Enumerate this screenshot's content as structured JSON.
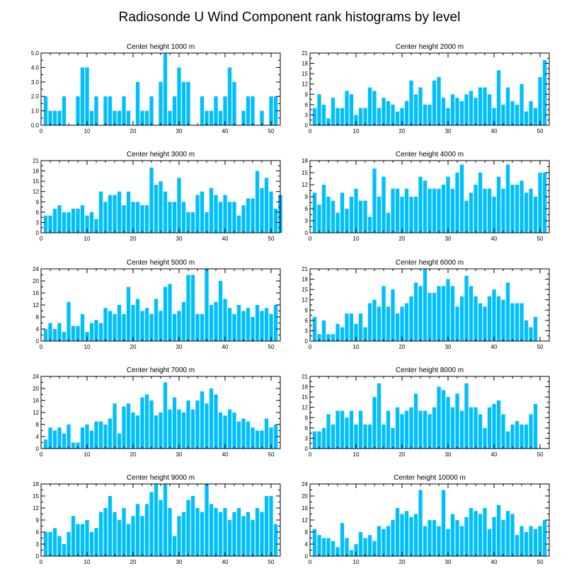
{
  "title": "Radiosonde U Wind Component rank histograms by level",
  "colors": {
    "bar": "#00bfff",
    "axis": "#000000",
    "background": "#ffffff"
  },
  "chart_data": [
    {
      "type": "bar",
      "title": "Center height 1000 m",
      "xlim": [
        0,
        52
      ],
      "ylim": [
        0,
        5
      ],
      "xticks": [
        0,
        10,
        20,
        30,
        40,
        50
      ],
      "yticks": [
        0,
        1,
        2,
        3,
        4,
        5
      ],
      "ytick_labels": [
        "0.0",
        "1.0",
        "2.0",
        "3.0",
        "4.0",
        "5.0"
      ],
      "x": [
        1,
        2,
        3,
        4,
        5,
        6,
        7,
        8,
        9,
        10,
        11,
        12,
        13,
        14,
        15,
        16,
        17,
        18,
        19,
        20,
        21,
        22,
        23,
        24,
        25,
        26,
        27,
        28,
        29,
        30,
        31,
        32,
        33,
        34,
        35,
        36,
        37,
        38,
        39,
        40,
        41,
        42,
        43,
        44,
        45,
        46,
        47,
        48,
        49,
        50,
        51,
        52
      ],
      "values": [
        2,
        1,
        1,
        1,
        2,
        0,
        0,
        2,
        4,
        4,
        1,
        2,
        0,
        2,
        2,
        1,
        1,
        2,
        1,
        0,
        3,
        1,
        1,
        2,
        0,
        3,
        5,
        1,
        2,
        4,
        3,
        3,
        0,
        0,
        2,
        1,
        1,
        2,
        1,
        2,
        4,
        3,
        0,
        1,
        2,
        2,
        0,
        1,
        0,
        2,
        2,
        0
      ]
    },
    {
      "type": "bar",
      "title": "Center height 2000 m",
      "xlim": [
        0,
        52
      ],
      "ylim": [
        0,
        21
      ],
      "xticks": [
        0,
        10,
        20,
        30,
        40,
        50
      ],
      "yticks": [
        0,
        3,
        6,
        9,
        12,
        15,
        18,
        21
      ],
      "ytick_labels": [
        "0",
        "3",
        "6",
        "9",
        "12",
        "15",
        "18",
        "21"
      ],
      "x": [
        1,
        2,
        3,
        4,
        5,
        6,
        7,
        8,
        9,
        10,
        11,
        12,
        13,
        14,
        15,
        16,
        17,
        18,
        19,
        20,
        21,
        22,
        23,
        24,
        25,
        26,
        27,
        28,
        29,
        30,
        31,
        32,
        33,
        34,
        35,
        36,
        37,
        38,
        39,
        40,
        41,
        42,
        43,
        44,
        45,
        46,
        47,
        48,
        49,
        50,
        51,
        52
      ],
      "values": [
        5,
        9,
        6,
        2,
        8,
        5,
        5,
        10,
        9,
        3,
        5,
        5,
        11,
        10,
        5,
        8,
        7,
        6,
        4,
        5,
        7,
        13,
        9,
        11,
        6,
        6,
        13,
        14,
        8,
        5,
        9,
        8,
        7,
        9,
        10,
        8,
        11,
        11,
        9,
        5,
        16,
        6,
        11,
        7,
        6,
        12,
        4,
        7,
        5,
        14,
        19,
        0
      ]
    },
    {
      "type": "bar",
      "title": "Center height 3000 m",
      "xlim": [
        0,
        52
      ],
      "ylim": [
        0,
        21
      ],
      "xticks": [
        0,
        10,
        20,
        30,
        40,
        50
      ],
      "yticks": [
        0,
        3,
        6,
        9,
        12,
        15,
        18,
        21
      ],
      "ytick_labels": [
        "0",
        "3",
        "6",
        "9",
        "12",
        "15",
        "18",
        "21"
      ],
      "x": [
        1,
        2,
        3,
        4,
        5,
        6,
        7,
        8,
        9,
        10,
        11,
        12,
        13,
        14,
        15,
        16,
        17,
        18,
        19,
        20,
        21,
        22,
        23,
        24,
        25,
        26,
        27,
        28,
        29,
        30,
        31,
        32,
        33,
        34,
        35,
        36,
        37,
        38,
        39,
        40,
        41,
        42,
        43,
        44,
        45,
        46,
        47,
        48,
        49,
        50,
        51,
        52
      ],
      "values": [
        5,
        5,
        7,
        8,
        6,
        6,
        7,
        7,
        8,
        5,
        6,
        4,
        12,
        9,
        11,
        11,
        12,
        8,
        12,
        9,
        9,
        8,
        8,
        19,
        14,
        15,
        12,
        9,
        9,
        16,
        9,
        6,
        6,
        11,
        12,
        6,
        13,
        11,
        9,
        11,
        9,
        9,
        5,
        8,
        10,
        10,
        18,
        13,
        16,
        12,
        7,
        11
      ]
    },
    {
      "type": "bar",
      "title": "Center height 4000 m",
      "xlim": [
        0,
        52
      ],
      "ylim": [
        0,
        18
      ],
      "xticks": [
        0,
        10,
        20,
        30,
        40,
        50
      ],
      "yticks": [
        0,
        3,
        6,
        9,
        12,
        15,
        18
      ],
      "ytick_labels": [
        "0",
        "3",
        "6",
        "9",
        "12",
        "15",
        "18"
      ],
      "x": [
        1,
        2,
        3,
        4,
        5,
        6,
        7,
        8,
        9,
        10,
        11,
        12,
        13,
        14,
        15,
        16,
        17,
        18,
        19,
        20,
        21,
        22,
        23,
        24,
        25,
        26,
        27,
        28,
        29,
        30,
        31,
        32,
        33,
        34,
        35,
        36,
        37,
        38,
        39,
        40,
        41,
        42,
        43,
        44,
        45,
        46,
        47,
        48,
        49,
        50,
        51,
        52
      ],
      "values": [
        10,
        7,
        12,
        9,
        8,
        5,
        10,
        6,
        9,
        11,
        8,
        8,
        4,
        16,
        9,
        14,
        5,
        11,
        11,
        9,
        11,
        9,
        9,
        14,
        13,
        11,
        11,
        11,
        12,
        14,
        11,
        15,
        17,
        8,
        10,
        12,
        15,
        11,
        11,
        9,
        14,
        11,
        17,
        12,
        12,
        13,
        10,
        11,
        9,
        15,
        15,
        0
      ]
    },
    {
      "type": "bar",
      "title": "Center height 5000 m",
      "xlim": [
        0,
        52
      ],
      "ylim": [
        0,
        24
      ],
      "xticks": [
        0,
        10,
        20,
        30,
        40,
        50
      ],
      "yticks": [
        0,
        4,
        8,
        12,
        16,
        20,
        24
      ],
      "ytick_labels": [
        "0",
        "4",
        "8",
        "12",
        "16",
        "20",
        "24"
      ],
      "x": [
        1,
        2,
        3,
        4,
        5,
        6,
        7,
        8,
        9,
        10,
        11,
        12,
        13,
        14,
        15,
        16,
        17,
        18,
        19,
        20,
        21,
        22,
        23,
        24,
        25,
        26,
        27,
        28,
        29,
        30,
        31,
        32,
        33,
        34,
        35,
        36,
        37,
        38,
        39,
        40,
        41,
        42,
        43,
        44,
        45,
        46,
        47,
        48,
        49,
        50,
        51,
        52
      ],
      "values": [
        4,
        6,
        4,
        6,
        3,
        13,
        5,
        5,
        9,
        3,
        6,
        7,
        6,
        11,
        10,
        9,
        12,
        9,
        18,
        12,
        14,
        10,
        11,
        9,
        14,
        10,
        18,
        19,
        9,
        10,
        13,
        22,
        22,
        9,
        9,
        24,
        12,
        13,
        20,
        14,
        11,
        9,
        12,
        10,
        11,
        8,
        12,
        10,
        11,
        9,
        12,
        0
      ]
    },
    {
      "type": "bar",
      "title": "Center height 6000 m",
      "xlim": [
        0,
        52
      ],
      "ylim": [
        0,
        21
      ],
      "xticks": [
        0,
        10,
        20,
        30,
        40,
        50
      ],
      "yticks": [
        0,
        3,
        6,
        9,
        12,
        15,
        18,
        21
      ],
      "ytick_labels": [
        "0",
        "3",
        "6",
        "9",
        "12",
        "15",
        "18",
        "21"
      ],
      "x": [
        1,
        2,
        3,
        4,
        5,
        6,
        7,
        8,
        9,
        10,
        11,
        12,
        13,
        14,
        15,
        16,
        17,
        18,
        19,
        20,
        21,
        22,
        23,
        24,
        25,
        26,
        27,
        28,
        29,
        30,
        31,
        32,
        33,
        34,
        35,
        36,
        37,
        38,
        39,
        40,
        41,
        42,
        43,
        44,
        45,
        46,
        47,
        48,
        49,
        50,
        51,
        52
      ],
      "values": [
        7,
        2,
        6,
        2,
        2,
        5,
        4,
        8,
        8,
        5,
        8,
        4,
        11,
        12,
        10,
        16,
        10,
        15,
        8,
        10,
        11,
        13,
        17,
        16,
        21,
        14,
        14,
        16,
        16,
        18,
        16,
        10,
        13,
        19,
        16,
        13,
        11,
        10,
        13,
        15,
        13,
        12,
        17,
        11,
        11,
        11,
        6,
        4,
        7,
        0,
        0,
        0
      ]
    },
    {
      "type": "bar",
      "title": "Center height 7000 m",
      "xlim": [
        0,
        52
      ],
      "ylim": [
        0,
        24
      ],
      "xticks": [
        0,
        10,
        20,
        30,
        40,
        50
      ],
      "yticks": [
        0,
        4,
        8,
        12,
        16,
        20,
        24
      ],
      "ytick_labels": [
        "0",
        "4",
        "8",
        "12",
        "16",
        "20",
        "24"
      ],
      "x": [
        1,
        2,
        3,
        4,
        5,
        6,
        7,
        8,
        9,
        10,
        11,
        12,
        13,
        14,
        15,
        16,
        17,
        18,
        19,
        20,
        21,
        22,
        23,
        24,
        25,
        26,
        27,
        28,
        29,
        30,
        31,
        32,
        33,
        34,
        35,
        36,
        37,
        38,
        39,
        40,
        41,
        42,
        43,
        44,
        45,
        46,
        47,
        48,
        49,
        50,
        51,
        52
      ],
      "values": [
        3,
        7,
        6,
        7,
        5,
        8,
        2,
        2,
        7,
        8,
        6,
        9,
        9,
        8,
        10,
        15,
        5,
        14,
        15,
        12,
        11,
        17,
        18,
        16,
        11,
        12,
        22,
        13,
        17,
        13,
        12,
        16,
        13,
        16,
        19,
        15,
        20,
        18,
        12,
        11,
        13,
        12,
        9,
        10,
        9,
        7,
        6,
        6,
        10,
        7,
        8,
        0
      ]
    },
    {
      "type": "bar",
      "title": "Center height 8000 m",
      "xlim": [
        0,
        52
      ],
      "ylim": [
        0,
        21
      ],
      "xticks": [
        0,
        10,
        20,
        30,
        40,
        50
      ],
      "yticks": [
        0,
        3,
        6,
        9,
        12,
        15,
        18,
        21
      ],
      "ytick_labels": [
        "0",
        "3",
        "6",
        "9",
        "12",
        "15",
        "18",
        "21"
      ],
      "x": [
        1,
        2,
        3,
        4,
        5,
        6,
        7,
        8,
        9,
        10,
        11,
        12,
        13,
        14,
        15,
        16,
        17,
        18,
        19,
        20,
        21,
        22,
        23,
        24,
        25,
        26,
        27,
        28,
        29,
        30,
        31,
        32,
        33,
        34,
        35,
        36,
        37,
        38,
        39,
        40,
        41,
        42,
        43,
        44,
        45,
        46,
        47,
        48,
        49,
        50,
        51,
        52
      ],
      "values": [
        5,
        5,
        6,
        10,
        7,
        11,
        11,
        9,
        11,
        7,
        11,
        7,
        7,
        15,
        19,
        7,
        11,
        6,
        12,
        10,
        11,
        12,
        16,
        11,
        11,
        10,
        12,
        18,
        17,
        15,
        12,
        16,
        11,
        19,
        12,
        12,
        10,
        6,
        12,
        13,
        14,
        10,
        5,
        7,
        8,
        7,
        7,
        10,
        13,
        0,
        0,
        0
      ]
    },
    {
      "type": "bar",
      "title": "Center height 9000 m",
      "xlim": [
        0,
        52
      ],
      "ylim": [
        0,
        18
      ],
      "xticks": [
        0,
        10,
        20,
        30,
        40,
        50
      ],
      "yticks": [
        0,
        3,
        6,
        9,
        12,
        15,
        18
      ],
      "ytick_labels": [
        "0",
        "3",
        "6",
        "9",
        "12",
        "15",
        "18"
      ],
      "x": [
        1,
        2,
        3,
        4,
        5,
        6,
        7,
        8,
        9,
        10,
        11,
        12,
        13,
        14,
        15,
        16,
        17,
        18,
        19,
        20,
        21,
        22,
        23,
        24,
        25,
        26,
        27,
        28,
        29,
        30,
        31,
        32,
        33,
        34,
        35,
        36,
        37,
        38,
        39,
        40,
        41,
        42,
        43,
        44,
        45,
        46,
        47,
        48,
        49,
        50,
        51,
        52
      ],
      "values": [
        6,
        6,
        7,
        5,
        3,
        6,
        10,
        8,
        8,
        9,
        6,
        7,
        11,
        12,
        15,
        11,
        9,
        12,
        8,
        10,
        13,
        10,
        13,
        16,
        18,
        14,
        18,
        12,
        5,
        10,
        11,
        14,
        15,
        12,
        11,
        18,
        13,
        12,
        11,
        12,
        9,
        11,
        12,
        10,
        11,
        9,
        12,
        11,
        15,
        15,
        8,
        0
      ]
    },
    {
      "type": "bar",
      "title": "Center height 10000 m",
      "xlim": [
        0,
        52
      ],
      "ylim": [
        0,
        24
      ],
      "xticks": [
        0,
        10,
        20,
        30,
        40,
        50
      ],
      "yticks": [
        0,
        4,
        8,
        12,
        16,
        20,
        24
      ],
      "ytick_labels": [
        "0",
        "4",
        "8",
        "12",
        "16",
        "20",
        "24"
      ],
      "x": [
        1,
        2,
        3,
        4,
        5,
        6,
        7,
        8,
        9,
        10,
        11,
        12,
        13,
        14,
        15,
        16,
        17,
        18,
        19,
        20,
        21,
        22,
        23,
        24,
        25,
        26,
        27,
        28,
        29,
        30,
        31,
        32,
        33,
        34,
        35,
        36,
        37,
        38,
        39,
        40,
        41,
        42,
        43,
        44,
        45,
        46,
        47,
        48,
        49,
        50,
        51,
        52
      ],
      "values": [
        9,
        7,
        6,
        6,
        5,
        3,
        11,
        6,
        2,
        4,
        8,
        6,
        7,
        5,
        10,
        9,
        10,
        12,
        16,
        14,
        15,
        13,
        14,
        22,
        10,
        12,
        12,
        10,
        22,
        9,
        14,
        12,
        10,
        13,
        16,
        15,
        14,
        16,
        9,
        13,
        17,
        12,
        15,
        14,
        7,
        10,
        8,
        10,
        9,
        10,
        12,
        0
      ]
    }
  ]
}
